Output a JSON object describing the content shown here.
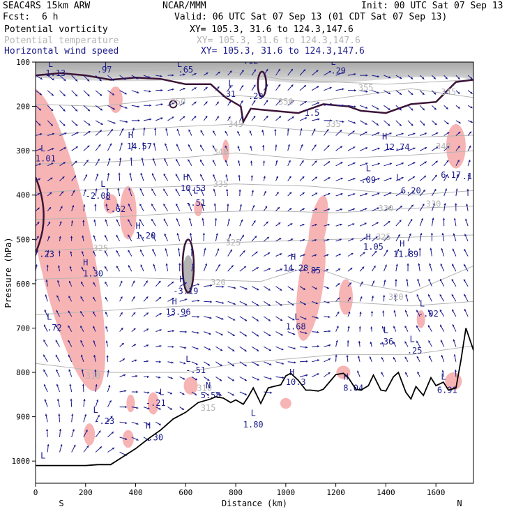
{
  "header": {
    "model": "SEAC4RS 15km ARW",
    "fcst_label": "Fcst:",
    "fcst_value": "6 h",
    "org": "NCAR/MMM",
    "init": "Init: 00 UTC Sat 07 Sep 13",
    "valid": "Valid: 06 UTC Sat 07 Sep 13 (01 CDT Sat 07 Sep 13)"
  },
  "fields": [
    {
      "name": "Potential vorticity",
      "xy": "XY= 105.3, 31.6 to 124.3,147.6",
      "color": "#000000"
    },
    {
      "name": "Potential temperature",
      "xy": "XY= 105.3, 31.6 to 124.3,147.6",
      "color": "#b4b4b4"
    },
    {
      "name": "Horizontal wind speed",
      "xy": "XY= 105.3, 31.6 to 124.3,147.6",
      "color": "#1a1a8c"
    }
  ],
  "colors": {
    "pv_contour": "#3c1438",
    "theta": "#b4b4b4",
    "wind": "#1a1a8c",
    "pv_positive_fill": "#f7b4b4",
    "pv_high_fill": "#808080",
    "terrain": "#000000"
  },
  "chart_data": {
    "type": "cross-section",
    "xlabel": "Distance (km)",
    "ylabel": "Pressure (hPa)",
    "xlim": [
      0,
      1750
    ],
    "ylim": [
      1050,
      100
    ],
    "x_ticks": [
      "0",
      "200",
      "400",
      "600",
      "800",
      "1000",
      "1200",
      "1400",
      "1600"
    ],
    "y_ticks": [
      "100",
      "200",
      "300",
      "400",
      "500",
      "600",
      "700",
      "800",
      "900",
      "1000"
    ],
    "end_labels": {
      "left": "S",
      "right": "N"
    },
    "terrain": {
      "x": [
        0,
        50,
        100,
        150,
        200,
        250,
        300,
        350,
        400,
        450,
        500,
        550,
        600,
        650,
        700,
        720,
        750,
        780,
        800,
        830,
        850,
        870,
        900,
        930,
        950,
        980,
        1000,
        1020,
        1050,
        1080,
        1100,
        1130,
        1150,
        1180,
        1200,
        1230,
        1250,
        1280,
        1300,
        1330,
        1350,
        1380,
        1400,
        1430,
        1450,
        1480,
        1500,
        1520,
        1550,
        1580,
        1600,
        1630,
        1650,
        1680,
        1700,
        1720,
        1750
      ],
      "p": [
        1010,
        1010,
        1010,
        1010,
        1010,
        1008,
        1008,
        990,
        972,
        950,
        930,
        905,
        890,
        868,
        860,
        855,
        858,
        868,
        862,
        872,
        855,
        835,
        870,
        835,
        832,
        828,
        808,
        802,
        818,
        840,
        840,
        842,
        838,
        818,
        805,
        802,
        812,
        838,
        840,
        830,
        806,
        840,
        842,
        810,
        800,
        845,
        860,
        832,
        852,
        812,
        830,
        822,
        840,
        835,
        772,
        700,
        750
      ]
    },
    "pv_labels": [
      {
        "text": "1.13",
        "x": 80,
        "p": 125
      },
      {
        "text": ".97",
        "x": 275,
        "p": 117
      },
      {
        "text": ".65",
        "x": 600,
        "p": 117
      },
      {
        "text": ".12",
        "x": 860,
        "p": 98
      },
      {
        "text": ".29",
        "x": 1210,
        "p": 120
      },
      {
        "text": ".31",
        "x": 770,
        "p": 172
      },
      {
        "text": ".29",
        "x": 880,
        "p": 177
      },
      {
        "text": "1.5",
        "x": 1105,
        "p": 215
      },
      {
        "text": "14.57",
        "x": 415,
        "p": 290
      },
      {
        "text": "12.74",
        "x": 1445,
        "p": 292
      },
      {
        "text": "1.01",
        "x": 40,
        "p": 318
      },
      {
        "text": "6.17",
        "x": 1660,
        "p": 355
      },
      {
        "text": ".1",
        "x": 1725,
        "p": 358
      },
      {
        "text": "10.53",
        "x": 630,
        "p": 385
      },
      {
        "text": ".09",
        "x": 1330,
        "p": 366
      },
      {
        "text": "6.20",
        "x": 1500,
        "p": 390
      },
      {
        "text": "-2.08",
        "x": 250,
        "p": 402
      },
      {
        "text": "-.62",
        "x": 320,
        "p": 432
      },
      {
        "text": "-.51",
        "x": 640,
        "p": 418
      },
      {
        "text": "1.20",
        "x": 440,
        "p": 492
      },
      {
        "text": "1.05",
        "x": 1350,
        "p": 517
      },
      {
        "text": "11.89",
        "x": 1480,
        "p": 533
      },
      {
        "text": ".23",
        "x": 45,
        "p": 533
      },
      {
        "text": "14.28",
        "x": 1040,
        "p": 565
      },
      {
        "text": ".85",
        "x": 1110,
        "p": 570
      },
      {
        "text": "1.30",
        "x": 230,
        "p": 577
      },
      {
        "text": "-3.19",
        "x": 600,
        "p": 617
      },
      {
        "text": "13.96",
        "x": 570,
        "p": 664
      },
      {
        "text": "-.02",
        "x": 1570,
        "p": 668
      },
      {
        "text": ".72",
        "x": 75,
        "p": 699
      },
      {
        "text": "1.68",
        "x": 1040,
        "p": 697
      },
      {
        "text": ".36",
        "x": 1400,
        "p": 731
      },
      {
        "text": ".25",
        "x": 1515,
        "p": 751
      },
      {
        "text": "-.51",
        "x": 640,
        "p": 795
      },
      {
        "text": "10.3",
        "x": 1040,
        "p": 822
      },
      {
        "text": "8.04",
        "x": 1270,
        "p": 835
      },
      {
        "text": "6.91",
        "x": 1645,
        "p": 840
      },
      {
        "text": "-.21",
        "x": 480,
        "p": 869
      },
      {
        "text": "5.58",
        "x": 700,
        "p": 852
      },
      {
        "text": "1.80",
        "x": 870,
        "p": 918
      },
      {
        "text": "-.23",
        "x": 275,
        "p": 910
      },
      {
        "text": ".30",
        "x": 480,
        "p": 947
      }
    ],
    "hl_markers": [
      {
        "text": "L",
        "x": 60,
        "p": 105
      },
      {
        "text": "L",
        "x": 285,
        "p": 108
      },
      {
        "text": "L",
        "x": 575,
        "p": 105
      },
      {
        "text": "L",
        "x": 780,
        "p": 148
      },
      {
        "text": "L",
        "x": 1190,
        "p": 100
      },
      {
        "text": "H",
        "x": 380,
        "p": 265
      },
      {
        "text": "H",
        "x": 1395,
        "p": 268
      },
      {
        "text": "L",
        "x": 30,
        "p": 295
      },
      {
        "text": "H",
        "x": 600,
        "p": 360
      },
      {
        "text": "L",
        "x": 1330,
        "p": 340
      },
      {
        "text": "L",
        "x": 1450,
        "p": 360
      },
      {
        "text": "L",
        "x": 270,
        "p": 375
      },
      {
        "text": "L",
        "x": 290,
        "p": 405
      },
      {
        "text": "L",
        "x": 640,
        "p": 390
      },
      {
        "text": "H",
        "x": 410,
        "p": 470
      },
      {
        "text": "H",
        "x": 1330,
        "p": 495
      },
      {
        "text": "H",
        "x": 1465,
        "p": 510
      },
      {
        "text": "H",
        "x": 1030,
        "p": 540
      },
      {
        "text": "H",
        "x": 200,
        "p": 552
      },
      {
        "text": "H",
        "x": 585,
        "p": 590
      },
      {
        "text": "H",
        "x": 555,
        "p": 640
      },
      {
        "text": "L",
        "x": 1545,
        "p": 645
      },
      {
        "text": "L",
        "x": 55,
        "p": 675
      },
      {
        "text": "L",
        "x": 1045,
        "p": 675
      },
      {
        "text": "L",
        "x": 1400,
        "p": 705
      },
      {
        "text": "L",
        "x": 1505,
        "p": 725
      },
      {
        "text": "L",
        "x": 610,
        "p": 770
      },
      {
        "text": "H",
        "x": 1025,
        "p": 800
      },
      {
        "text": "H",
        "x": 1240,
        "p": 810
      },
      {
        "text": "L",
        "x": 1630,
        "p": 810
      },
      {
        "text": "L",
        "x": 505,
        "p": 845
      },
      {
        "text": "N",
        "x": 690,
        "p": 830
      },
      {
        "text": "L",
        "x": 240,
        "p": 885
      },
      {
        "text": "L",
        "x": 870,
        "p": 892
      },
      {
        "text": "H",
        "x": 450,
        "p": 920
      },
      {
        "text": "L",
        "x": 30,
        "p": 988
      }
    ],
    "theta_labels": [
      {
        "text": "345",
        "x": 800,
        "p": 240
      },
      {
        "text": "350",
        "x": 1000,
        "p": 190
      },
      {
        "text": "355",
        "x": 1320,
        "p": 158
      },
      {
        "text": "335",
        "x": 1190,
        "p": 240
      },
      {
        "text": "350",
        "x": 570,
        "p": 190
      },
      {
        "text": "345",
        "x": 1650,
        "p": 168
      },
      {
        "text": "340",
        "x": 740,
        "p": 303
      },
      {
        "text": "340",
        "x": 1630,
        "p": 290
      },
      {
        "text": "335",
        "x": 740,
        "p": 375
      },
      {
        "text": "330",
        "x": 1400,
        "p": 430
      },
      {
        "text": "330",
        "x": 1590,
        "p": 420
      },
      {
        "text": "325",
        "x": 790,
        "p": 507
      },
      {
        "text": "325",
        "x": 260,
        "p": 520
      },
      {
        "text": "325",
        "x": 1390,
        "p": 495
      },
      {
        "text": "320",
        "x": 730,
        "p": 597
      },
      {
        "text": "320",
        "x": 1440,
        "p": 630
      },
      {
        "text": "310",
        "x": 230,
        "p": 808
      },
      {
        "text": "310",
        "x": 675,
        "p": 835
      },
      {
        "text": "315",
        "x": 690,
        "p": 880
      }
    ]
  }
}
